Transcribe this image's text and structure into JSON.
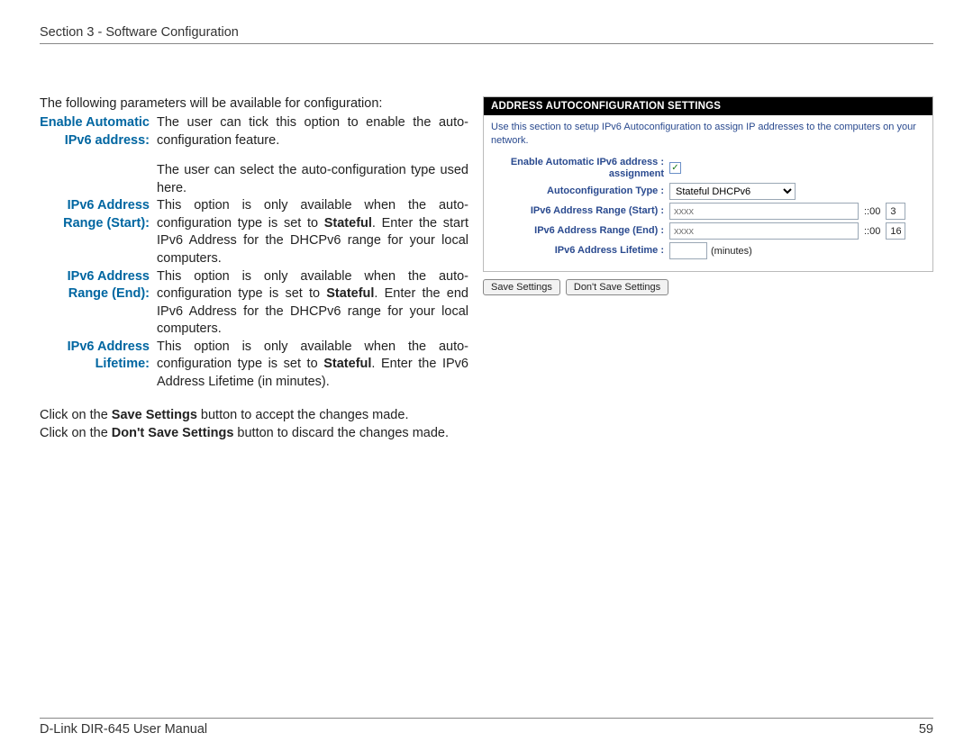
{
  "header": {
    "section": "Section 3 - Software Configuration"
  },
  "intro": "The following parameters will be available for configuration:",
  "defs": [
    {
      "term": "Enable Automatic IPv6 address:",
      "desc": "The user can tick this option to enable the auto-configuration feature.",
      "extra": "The user can select the auto-configuration type used here."
    },
    {
      "term": "IPv6 Address Range (Start):",
      "desc_html": "This option is only available when the auto-configuration type is set to <b>Stateful</b>. Enter the start IPv6 Address for the DHCPv6 range for your local computers."
    },
    {
      "term": "IPv6 Address Range (End):",
      "desc_html": "This option is only available when the auto-configuration type is set to <b>Stateful</b>. Enter the end IPv6 Address for the DHCPv6 range for your local computers."
    },
    {
      "term": "IPv6 Address Lifetime:",
      "desc_html": "This option is only available when the auto-configuration type is set to <b>Stateful</b>. Enter the IPv6 Address Lifetime (in minutes)."
    }
  ],
  "bottom": {
    "line1_pre": "Click on the ",
    "line1_bold": "Save Settings",
    "line1_post": " button to accept the changes made.",
    "line2_pre": "Click on the ",
    "line2_bold": "Don't Save Settings",
    "line2_post": " button to discard the changes made."
  },
  "panel": {
    "title": "ADDRESS AUTOCONFIGURATION SETTINGS",
    "description": "Use this section to setup IPv6 Autoconfiguration to assign IP addresses to the computers on your network.",
    "rows": {
      "enable": {
        "label": "Enable Automatic IPv6 address assignment",
        "checked": true
      },
      "type": {
        "label": "Autoconfiguration Type :",
        "value": "Stateful DHCPv6"
      },
      "start": {
        "label": "IPv6 Address Range (Start) :",
        "placeholder": "xxxx",
        "sep": "::00",
        "suffix": "3"
      },
      "end": {
        "label": "IPv6 Address Range (End) :",
        "placeholder": "xxxx",
        "sep": "::00",
        "suffix": "16"
      },
      "lifetime": {
        "label": "IPv6 Address Lifetime :",
        "unit": "(minutes)"
      }
    },
    "buttons": {
      "save": "Save Settings",
      "dont": "Don't Save Settings"
    }
  },
  "footer": {
    "manual": "D-Link DIR-645 User Manual",
    "page": "59"
  },
  "colors": {
    "term": "#0066a1",
    "panel_label": "#2a4a8f"
  }
}
